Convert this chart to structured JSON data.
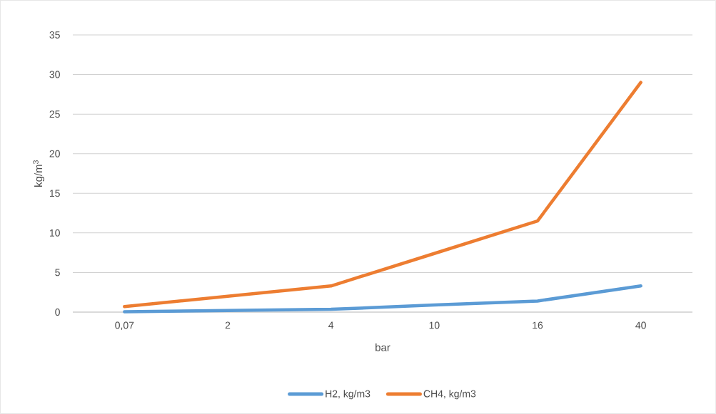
{
  "chart_data": {
    "type": "line",
    "xlabel": "bar",
    "ylabel": "kg/m$^{3}$",
    "categories": [
      "0,07",
      "2",
      "4",
      "10",
      "16",
      "40"
    ],
    "series": [
      {
        "name": "H2, kg/m3",
        "color": "#5b9bd5",
        "values": [
          0.05,
          0.2,
          0.35,
          0.9,
          1.4,
          3.3
        ]
      },
      {
        "name": "CH4, kg/m3",
        "color": "#ed7d31",
        "values": [
          0.7,
          2.0,
          3.3,
          7.4,
          11.5,
          29
        ]
      }
    ],
    "ylim": [
      0,
      35
    ],
    "yticks": [
      0,
      5,
      10,
      15,
      20,
      25,
      30,
      35
    ],
    "grid": "y",
    "legend": "bottom",
    "marker": "none",
    "line_style": "solid"
  }
}
